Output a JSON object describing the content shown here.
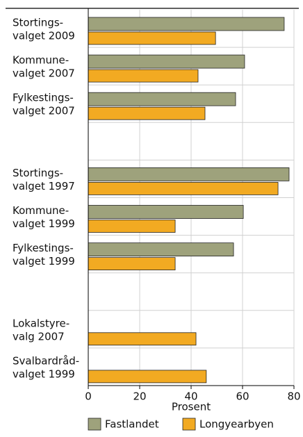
{
  "chart_data": {
    "type": "barh",
    "categories": [
      [
        "Stortings-",
        "valget 2009"
      ],
      [
        "Kommune-",
        "valget 2007"
      ],
      [
        "Fylkestings-",
        "valget 2007"
      ],
      null,
      [
        "Stortings-",
        "valget 1997"
      ],
      [
        "Kommune-",
        "valget 1999"
      ],
      [
        "Fylkestings-",
        "valget 1999"
      ],
      null,
      [
        "Lokalstyre-",
        "valg 2007"
      ],
      [
        "Svalbardråd-",
        "valget 1999"
      ]
    ],
    "series": [
      {
        "name": "Fastlandet",
        "color": "#9ea27c",
        "values": [
          76.2,
          60.8,
          57.3,
          null,
          78.1,
          60.3,
          56.5,
          null,
          null,
          null
        ]
      },
      {
        "name": "Longyearbyen",
        "color": "#f2aa22",
        "values": [
          49.5,
          42.7,
          45.4,
          null,
          73.8,
          33.8,
          33.8,
          null,
          41.9,
          45.9
        ]
      }
    ],
    "xlabel": "Prosent",
    "xlim": [
      0,
      80
    ],
    "xticks": [
      0,
      20,
      40,
      60,
      80
    ],
    "grid": true,
    "legend": "bottom"
  }
}
